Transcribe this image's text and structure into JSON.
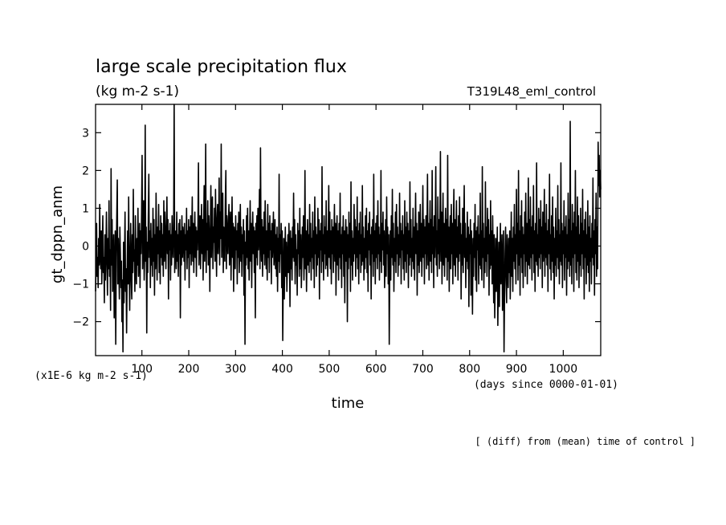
{
  "chart_data": {
    "type": "line",
    "title": "large scale precipitation flux",
    "subtitle": "(kg m-2 s-1)",
    "run_label": "T319L48_eml_control",
    "xlabel": "time",
    "x_units": "(days since 0000-01-01)",
    "ylabel": "gt_dppn_anm",
    "y_scale_note": "(x1E-6 kg m-2 s-1)",
    "footnote": "[ (diff) from (mean) time of control ]",
    "xlim": [
      1,
      1080
    ],
    "ylim": [
      -2.9,
      3.75
    ],
    "x_ticks": [
      100,
      200,
      300,
      400,
      500,
      600,
      700,
      800,
      900,
      1000
    ],
    "y_ticks": [
      -2,
      -1,
      0,
      1,
      2,
      3
    ],
    "line_color": "#000000",
    "grid": false,
    "series": [
      {
        "x_step": 1,
        "x_start": 1,
        "values": [
          -1.2,
          -0.4,
          0.6,
          -0.8,
          -0.3,
          -1.1,
          0.2,
          -0.5,
          1.1,
          -0.2,
          -0.6,
          0.4,
          -1.0,
          -0.1,
          0.8,
          -0.7,
          -0.3,
          -1.5,
          0.3,
          -0.9,
          -0.2,
          0.9,
          -0.4,
          -1.3,
          0.2,
          -0.6,
          1.2,
          -0.8,
          -0.1,
          -1.7,
          2.05,
          -0.5,
          0.7,
          -1.2,
          -0.4,
          0.3,
          -1.9,
          -0.7,
          0.4,
          -2.6,
          -0.3,
          0.8,
          1.75,
          -1.0,
          0.2,
          -0.6,
          -1.4,
          0.5,
          -0.2,
          -1.1,
          -0.4,
          -2.0,
          -0.9,
          -2.8,
          0.1,
          -1.5,
          -0.3,
          0.9,
          -1.2,
          -0.6,
          -2.3,
          -0.8,
          0.4,
          -1.0,
          1.3,
          -0.5,
          -1.7,
          -0.2,
          0.6,
          -0.9,
          -1.4,
          0.3,
          -0.7,
          1.5,
          -0.4,
          -0.1,
          -1.2,
          0.8,
          -0.6,
          -1.0,
          0.2,
          -0.5,
          1.0,
          -0.8,
          -0.3,
          0.6,
          -1.1,
          0.4,
          -0.2,
          0.9,
          2.4,
          -0.6,
          0.3,
          1.2,
          -0.9,
          -0.2,
          3.2,
          -0.4,
          0.5,
          -2.3,
          0.1,
          -0.7,
          0.8,
          1.9,
          -0.3,
          0.4,
          -1.1,
          0.6,
          -0.5,
          0.2,
          -0.8,
          1.0,
          -0.4,
          0.7,
          -1.3,
          0.3,
          -0.6,
          1.4,
          0.2,
          -0.9,
          0.5,
          -0.2,
          1.1,
          -0.7,
          0.4,
          -1.0,
          0.8,
          -0.3,
          0.6,
          -0.5,
          0.3,
          -0.8,
          1.2,
          -0.4,
          0.9,
          0.2,
          -0.6,
          0.5,
          1.3,
          -0.2,
          0.7,
          -1.4,
          0.4,
          -0.1,
          0.6,
          -0.9,
          0.3,
          -0.5,
          0.8,
          0.1,
          -0.3,
          0.5,
          3.75,
          -0.7,
          0.4,
          0.2,
          -0.6,
          0.9,
          -0.4,
          0.3,
          -0.8,
          0.6,
          -0.2,
          0.7,
          -1.9,
          0.4,
          -0.5,
          0.8,
          -0.3,
          0.5,
          0.2,
          -0.4,
          0.6,
          -0.9,
          0.3,
          -0.1,
          1.0,
          -0.6,
          0.4,
          -0.3,
          0.7,
          -1.1,
          0.5,
          -0.2,
          0.8,
          -0.5,
          0.3,
          1.3,
          -0.4,
          0.6,
          -0.7,
          0.2,
          0.9,
          -0.3,
          0.5,
          -0.8,
          0.4,
          -0.1,
          0.6,
          2.2,
          -0.5,
          0.3,
          0.8,
          -0.6,
          0.4,
          1.1,
          -0.2,
          0.7,
          -0.9,
          0.5,
          1.6,
          -0.4,
          0.3,
          2.7,
          -0.7,
          0.6,
          -0.1,
          1.2,
          -0.5,
          0.8,
          0.2,
          -1.2,
          0.4,
          1.6,
          -0.3,
          0.9,
          1.3,
          -0.6,
          0.5,
          0.1,
          1.0,
          -0.4,
          1.5,
          0.3,
          -0.8,
          0.7,
          1.1,
          -0.2,
          0.4,
          1.8,
          -0.5,
          0.9,
          0.2,
          2.7,
          -0.3,
          0.6,
          1.4,
          -0.7,
          0.5,
          0.1,
          -0.4,
          1.2,
          2.0,
          -0.6,
          0.8,
          0.3,
          -0.2,
          0.7,
          1.1,
          -0.5,
          0.4,
          0.9,
          -0.9,
          0.3,
          1.3,
          -0.3,
          0.6,
          -1.2,
          0.5,
          0.2,
          -0.6,
          0.8,
          -0.1,
          0.4,
          -1.0,
          0.6,
          -0.3,
          0.9,
          -0.7,
          0.2,
          1.1,
          -0.4,
          0.5,
          -0.8,
          0.3,
          -0.2,
          0.7,
          -1.3,
          0.4,
          -2.6,
          0.1,
          -0.5,
          0.8,
          -0.3,
          1.0,
          -0.6,
          0.4,
          -0.9,
          0.2,
          1.2,
          -0.4,
          0.6,
          -1.1,
          0.3,
          0.9,
          -0.2,
          0.5,
          -0.7,
          0.4,
          -1.9,
          0.6,
          -0.3,
          0.8,
          -0.5,
          1.0,
          -0.1,
          0.3,
          1.5,
          -0.6,
          2.6,
          0.2,
          -0.4,
          0.7,
          -0.8,
          0.5,
          -0.2,
          0.9,
          -0.5,
          1.2,
          0.3,
          -0.6,
          0.4,
          -0.9,
          1.1,
          -0.3,
          0.6,
          -0.7,
          0.8,
          -0.1,
          0.4,
          -1.0,
          0.6,
          -0.3,
          0.2,
          0.9,
          -0.5,
          -0.2,
          0.7,
          -0.6,
          0.3,
          -0.8,
          0.5,
          -1.2,
          0.2,
          -0.4,
          1.9,
          -0.7,
          0.3,
          -0.2,
          0.6,
          -1.1,
          0.4,
          -2.5,
          -0.9,
          0.2,
          -1.4,
          -0.3,
          0.5,
          -0.8,
          0.1,
          -1.2,
          -0.5,
          0.3,
          -0.7,
          0.6,
          -0.2,
          -1.6,
          0.4,
          -0.6,
          0.2,
          -0.9,
          0.5,
          -0.3,
          1.4,
          -0.4,
          0.7,
          -1.0,
          0.3,
          -0.5,
          -0.1,
          -1.3,
          0.6,
          -0.2,
          0.4,
          -0.8,
          1.0,
          -0.6,
          0.3,
          -1.1,
          -0.4,
          0.5,
          -0.3,
          0.8,
          -0.9,
          -0.2,
          2.0,
          -0.6,
          0.4,
          -1.2,
          -0.1,
          0.7,
          -0.5,
          0.3,
          -0.7,
          1.1,
          -0.4,
          0.6,
          -0.9,
          0.2,
          -0.3,
          0.9,
          -0.6,
          0.4,
          -1.1,
          1.3,
          -0.2,
          0.5,
          -0.8,
          0.3,
          -0.5,
          1.0,
          -0.3,
          0.7,
          -1.4,
          0.4,
          -0.1,
          0.6,
          -0.7,
          2.1,
          -0.4,
          0.3,
          -0.9,
          0.8,
          -0.2,
          0.5,
          -0.6,
          1.2,
          -0.5,
          0.4,
          -0.8,
          0.2,
          1.6,
          -0.3,
          0.9,
          -0.6,
          0.4,
          -1.0,
          0.7,
          -0.2,
          0.5,
          -0.7,
          0.3,
          1.1,
          -0.4,
          0.6,
          -1.3,
          0.2,
          0.8,
          -0.5,
          0.4,
          -0.9,
          0.6,
          -0.3,
          1.4,
          -0.6,
          0.3,
          -1.1,
          0.5,
          -0.2,
          0.8,
          -0.8,
          0.4,
          -1.5,
          0.2,
          0.7,
          -0.4,
          0.5,
          -2.0,
          0.3,
          -0.6,
          0.9,
          -0.3,
          0.6,
          -1.2,
          1.7,
          -0.5,
          0.4,
          -0.9,
          0.2,
          -0.4,
          1.1,
          -0.2,
          0.7,
          -0.8,
          0.5,
          -0.3,
          1.3,
          -0.6,
          0.4,
          -1.0,
          0.6,
          -0.2,
          0.9,
          -0.7,
          0.3,
          -0.5,
          1.6,
          -0.4,
          0.5,
          -0.9,
          0.2,
          -0.6,
          0.8,
          -0.3,
          1.0,
          -0.7,
          0.4,
          -1.2,
          0.6,
          -0.1,
          0.9,
          -0.5,
          0.3,
          -1.4,
          0.5,
          -0.2,
          0.7,
          -0.8,
          1.9,
          -0.4,
          0.4,
          -1.0,
          0.6,
          -0.3,
          0.8,
          -0.6,
          1.2,
          -0.2,
          0.5,
          -0.9,
          0.3,
          -0.4,
          2.0,
          -0.7,
          0.6,
          -0.1,
          0.9,
          -0.5,
          0.4,
          -1.1,
          -0.3,
          0.7,
          -0.8,
          1.3,
          -0.2,
          0.5,
          -1.0,
          0.3,
          -2.6,
          -0.6,
          0.4,
          -0.9,
          0.8,
          -0.3,
          1.5,
          -0.5,
          0.6,
          -1.2,
          0.2,
          -0.4,
          0.9,
          -0.7,
          1.1,
          -0.2,
          0.5,
          -0.8,
          0.3,
          -0.5,
          1.4,
          -0.3,
          0.6,
          -1.0,
          0.4,
          -0.1,
          0.8,
          -0.6,
          0.3,
          -0.9,
          1.2,
          -0.4,
          0.5,
          -0.7,
          0.9,
          -0.2,
          0.6,
          -1.1,
          0.4,
          -0.5,
          1.7,
          -0.3,
          0.7,
          -0.8,
          0.2,
          -0.4,
          1.0,
          -0.6,
          0.5,
          -0.9,
          0.3,
          1.4,
          -0.2,
          0.6,
          -1.3,
          0.4,
          -0.5,
          0.9,
          -0.7,
          0.3,
          1.1,
          -0.4,
          0.6,
          -0.8,
          0.2,
          1.6,
          -0.3,
          0.7,
          -1.0,
          0.5,
          -0.2,
          0.8,
          -0.6,
          0.4,
          1.9,
          -0.5,
          0.6,
          -0.9,
          0.3,
          1.2,
          -0.4,
          0.7,
          -0.7,
          2.0,
          -0.2,
          0.5,
          -1.1,
          0.8,
          -0.3,
          0.6,
          2.1,
          -0.5,
          0.4,
          -0.8,
          1.3,
          -0.2,
          0.7,
          -0.6,
          0.5,
          2.5,
          -0.4,
          0.9,
          -1.0,
          0.3,
          1.4,
          -0.5,
          0.6,
          -0.8,
          0.2,
          1.0,
          -0.3,
          0.7,
          -0.9,
          2.4,
          -0.4,
          0.5,
          -1.2,
          0.3,
          0.8,
          -0.6,
          1.1,
          -0.2,
          0.6,
          -1.0,
          0.4,
          1.5,
          -0.5,
          0.7,
          -0.8,
          0.2,
          1.2,
          -0.3,
          0.5,
          -0.9,
          0.8,
          -0.4,
          1.3,
          -0.2,
          0.6,
          -1.4,
          0.3,
          -0.5,
          1.0,
          -0.7,
          0.4,
          1.6,
          -0.3,
          0.6,
          -1.1,
          0.2,
          -0.4,
          0.9,
          -0.6,
          0.5,
          -1.6,
          0.3,
          -0.2,
          0.7,
          -1.3,
          0.4,
          -0.5,
          -1.8,
          0.2,
          -0.8,
          0.6,
          -0.3,
          1.1,
          -0.9,
          0.4,
          -1.2,
          0.5,
          -0.1,
          0.8,
          -1.0,
          0.3,
          -0.5,
          1.4,
          -0.6,
          0.4,
          -0.9,
          2.1,
          -0.3,
          0.6,
          -1.1,
          0.2,
          -0.7,
          1.7,
          -0.4,
          0.5,
          -0.8,
          1.0,
          -0.2,
          0.7,
          -1.3,
          0.3,
          -0.6,
          1.2,
          -0.5,
          0.4,
          -1.0,
          0.8,
          -0.3,
          -1.5,
          0.3,
          -1.9,
          -0.7,
          0.2,
          -1.2,
          -0.4,
          0.5,
          -2.1,
          -0.8,
          0.1,
          -1.6,
          -0.3,
          0.6,
          -1.0,
          -0.5,
          0.3,
          -1.7,
          -0.6,
          0.4,
          -2.8,
          -1.3,
          -0.2,
          0.5,
          -0.9,
          -1.5,
          0.3,
          -0.6,
          -1.1,
          0.2,
          -0.7,
          0.4,
          -1.4,
          -0.3,
          0.9,
          -0.8,
          0.2,
          -1.2,
          0.5,
          -0.4,
          1.1,
          -0.6,
          0.3,
          -1.0,
          1.5,
          -0.2,
          0.6,
          -0.9,
          2.0,
          -0.5,
          0.4,
          -1.3,
          0.8,
          -0.3,
          1.2,
          -0.7,
          0.5,
          -1.1,
          0.3,
          -0.2,
          0.9,
          -0.8,
          1.4,
          -0.4,
          0.6,
          -1.0,
          0.2,
          1.8,
          -0.5,
          0.7,
          -0.6,
          1.3,
          -0.3,
          0.5,
          -0.9,
          0.8,
          -0.2,
          1.6,
          -0.7,
          0.4,
          -1.2,
          0.6,
          -0.4,
          2.2,
          -0.5,
          0.3,
          -0.8,
          1.0,
          -0.3,
          0.7,
          -0.6,
          1.2,
          -0.2,
          0.5,
          -1.1,
          0.9,
          -0.4,
          0.3,
          1.5,
          -0.8,
          0.6,
          -0.3,
          1.1,
          -0.5,
          0.4,
          -1.2,
          0.7,
          -0.2,
          1.9,
          -0.6,
          0.3,
          -0.9,
          0.8,
          -0.4,
          1.3,
          -0.7,
          0.5,
          -1.4,
          0.2,
          -0.5,
          1.0,
          -0.8,
          0.4,
          -0.3,
          1.6,
          -0.6,
          0.7,
          -1.0,
          0.3,
          -0.4,
          2.2,
          -0.5,
          0.6,
          -1.1,
          0.4,
          -0.2,
          1.2,
          -0.9,
          0.5,
          -0.3,
          0.8,
          -1.3,
          0.3,
          -0.6,
          1.4,
          -0.4,
          0.7,
          -0.8,
          3.3,
          -0.5,
          0.4,
          -1.0,
          1.1,
          -0.3,
          0.6,
          -1.2,
          0.9,
          -0.2,
          2.0,
          -0.7,
          0.5,
          -0.9,
          1.3,
          -0.4,
          0.8,
          -1.1,
          0.3,
          -0.5,
          1.0,
          -0.8,
          0.6,
          -0.2,
          1.5,
          -0.6,
          0.4,
          -1.4,
          0.7,
          -0.3,
          0.9,
          -1.0,
          0.3,
          -0.5,
          1.2,
          -0.7,
          0.5,
          -1.2,
          0.8,
          -0.4,
          0.2,
          -1.0,
          0.6,
          -0.3,
          1.8,
          -0.5,
          0.4,
          -1.3,
          0.7,
          -0.2,
          1.4,
          -0.8,
          0.5,
          -0.6,
          2.75,
          1.6,
          2.4,
          1.3,
          2.0,
          1.5
        ]
      }
    ]
  }
}
